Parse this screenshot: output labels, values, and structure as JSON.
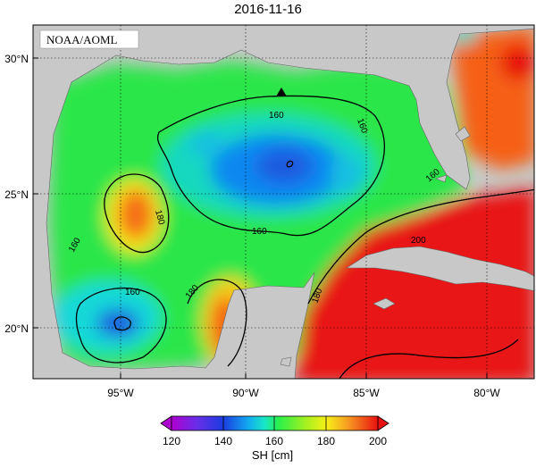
{
  "title": "2016-11-16",
  "credit": "NOAA/AOML",
  "axes": {
    "lat_ticks": [
      "30°N",
      "25°N",
      "20°N"
    ],
    "lon_ticks": [
      "95°W",
      "90°W",
      "85°W",
      "80°W"
    ]
  },
  "contour_labels": [
    "160",
    "160",
    "160",
    "160",
    "160",
    "180",
    "180",
    "160",
    "180",
    "200"
  ],
  "colorbar": {
    "label": "SH [cm]",
    "ticks": [
      "120",
      "140",
      "160",
      "180",
      "200"
    ],
    "min": 120,
    "max": 200,
    "colors": [
      "#b000d0",
      "#6a2ee8",
      "#1b3ce0",
      "#0a7cf0",
      "#12d8ea",
      "#2af04a",
      "#9af020",
      "#f6f018",
      "#f7b022",
      "#f55a14",
      "#e81010"
    ]
  },
  "marker": "triangle"
}
